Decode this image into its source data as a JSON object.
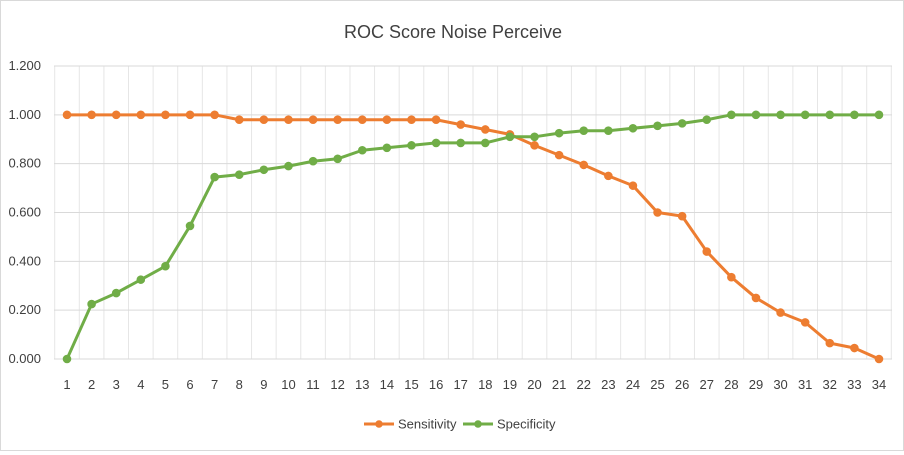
{
  "chart_data": {
    "type": "line",
    "title": "ROC Score Noise Perceive",
    "xlabel": "",
    "ylabel": "",
    "ylim": [
      0,
      1.2
    ],
    "yticks": [
      "0.000",
      "0.200",
      "0.400",
      "0.600",
      "0.800",
      "1.000",
      "1.200"
    ],
    "grid": true,
    "legend_position": "bottom",
    "x": [
      "1",
      "2",
      "3",
      "4",
      "5",
      "6",
      "7",
      "8",
      "9",
      "10",
      "11",
      "12",
      "13",
      "14",
      "15",
      "16",
      "17",
      "18",
      "19",
      "20",
      "21",
      "22",
      "23",
      "24",
      "25",
      "26",
      "27",
      "28",
      "29",
      "30",
      "31",
      "32",
      "33",
      "34"
    ],
    "series": [
      {
        "name": "Sensitivity",
        "color": "#ED7D31",
        "values": [
          1.0,
          1.0,
          1.0,
          1.0,
          1.0,
          1.0,
          1.0,
          0.98,
          0.98,
          0.98,
          0.98,
          0.98,
          0.98,
          0.98,
          0.98,
          0.98,
          0.96,
          0.94,
          0.92,
          0.875,
          0.835,
          0.795,
          0.75,
          0.71,
          0.6,
          0.585,
          0.44,
          0.335,
          0.25,
          0.19,
          0.15,
          0.065,
          0.045,
          0.0
        ]
      },
      {
        "name": "Specificity",
        "color": "#70AD47",
        "values": [
          0.0,
          0.225,
          0.27,
          0.325,
          0.38,
          0.545,
          0.745,
          0.755,
          0.775,
          0.79,
          0.81,
          0.82,
          0.855,
          0.865,
          0.875,
          0.885,
          0.885,
          0.885,
          0.91,
          0.91,
          0.925,
          0.935,
          0.935,
          0.945,
          0.955,
          0.965,
          0.98,
          1.0,
          1.0,
          1.0,
          1.0,
          1.0,
          1.0,
          1.0
        ]
      }
    ]
  }
}
